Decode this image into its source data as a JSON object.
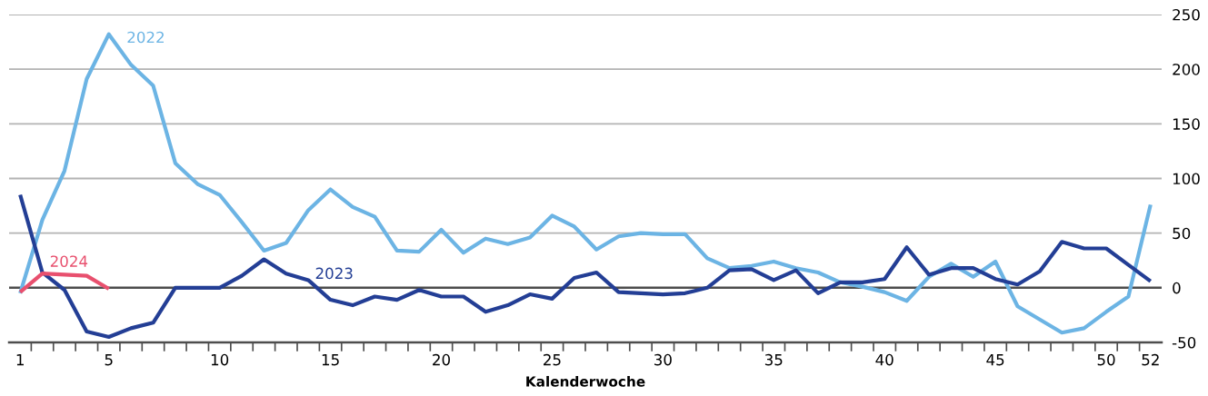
{
  "chart_data": {
    "type": "line",
    "xlabel": "Kalenderwoche",
    "x": [
      1,
      2,
      3,
      4,
      5,
      6,
      7,
      8,
      9,
      10,
      11,
      12,
      13,
      14,
      15,
      16,
      17,
      18,
      19,
      20,
      21,
      22,
      23,
      24,
      25,
      26,
      27,
      28,
      29,
      30,
      31,
      32,
      33,
      34,
      35,
      36,
      37,
      38,
      39,
      40,
      41,
      42,
      43,
      44,
      45,
      46,
      47,
      48,
      49,
      50,
      51,
      52
    ],
    "series": [
      {
        "name": "2022",
        "color": "#6cb4e4",
        "values": [
          -5,
          62,
          107,
          191,
          232,
          204,
          185,
          114,
          95,
          85,
          60,
          34,
          41,
          71,
          90,
          74,
          65,
          34,
          33,
          53,
          32,
          45,
          40,
          46,
          66,
          56,
          35,
          47,
          50,
          49,
          49,
          27,
          18,
          20,
          24,
          18,
          14,
          5,
          1,
          -4,
          -12,
          10,
          22,
          10,
          24,
          -17,
          -29,
          -41,
          -37,
          -22,
          -8,
          76
        ]
      },
      {
        "name": "2023",
        "color": "#233e95",
        "values": [
          85,
          14,
          -2,
          -40,
          -45,
          -37,
          -32,
          0,
          0,
          0,
          11,
          26,
          13,
          7,
          -11,
          -16,
          -8,
          -11,
          -2,
          -8,
          -8,
          -22,
          -16,
          -6,
          -10,
          9,
          14,
          -4,
          -5,
          -6,
          -5,
          0,
          16,
          17,
          7,
          16,
          -5,
          5,
          5,
          8,
          37,
          12,
          18,
          18,
          8,
          3,
          15,
          42,
          36,
          36,
          21,
          6
        ]
      },
      {
        "name": "2024",
        "color": "#e8506e",
        "x": [
          1,
          2,
          3,
          4,
          5
        ],
        "values": [
          -4,
          13,
          12,
          11,
          -1
        ]
      }
    ],
    "xlim": [
      0.5,
      52.5
    ],
    "xticks": [
      1,
      {
        "value": 1.5,
        "label": null
      },
      {
        "value": 2.5,
        "label": null
      },
      {
        "value": 3.5,
        "label": null
      },
      {
        "value": 4.5,
        "label": null
      },
      5,
      {
        "value": 5.5,
        "label": null
      },
      {
        "value": 6.5,
        "label": null
      },
      {
        "value": 7.5,
        "label": null
      },
      {
        "value": 8.5,
        "label": null
      },
      {
        "value": 9.5,
        "label": null
      },
      10,
      {
        "value": 10.5,
        "label": null
      },
      {
        "value": 11.5,
        "label": null
      },
      {
        "value": 12.5,
        "label": null
      },
      {
        "value": 13.5,
        "label": null
      },
      {
        "value": 14.5,
        "label": null
      },
      15,
      {
        "value": 15.5,
        "label": null
      },
      {
        "value": 16.5,
        "label": null
      },
      {
        "value": 17.5,
        "label": null
      },
      {
        "value": 18.5,
        "label": null
      },
      {
        "value": 19.5,
        "label": null
      },
      20,
      {
        "value": 20.5,
        "label": null
      },
      {
        "value": 21.5,
        "label": null
      },
      {
        "value": 22.5,
        "label": null
      },
      {
        "value": 23.5,
        "label": null
      },
      {
        "value": 24.5,
        "label": null
      },
      25,
      {
        "value": 25.5,
        "label": null
      },
      {
        "value": 26.5,
        "label": null
      },
      {
        "value": 27.5,
        "label": null
      },
      {
        "value": 28.5,
        "label": null
      },
      {
        "value": 29.5,
        "label": null
      },
      30,
      {
        "value": 30.5,
        "label": null
      },
      {
        "value": 31.5,
        "label": null
      },
      {
        "value": 32.5,
        "label": null
      },
      {
        "value": 33.5,
        "label": null
      },
      {
        "value": 34.5,
        "label": null
      },
      35,
      {
        "value": 35.5,
        "label": null
      },
      {
        "value": 36.5,
        "label": null
      },
      {
        "value": 37.5,
        "label": null
      },
      {
        "value": 38.5,
        "label": null
      },
      {
        "value": 39.5,
        "label": null
      },
      40,
      {
        "value": 40.5,
        "label": null
      },
      {
        "value": 41.5,
        "label": null
      },
      {
        "value": 42.5,
        "label": null
      },
      {
        "value": 43.5,
        "label": null
      },
      {
        "value": 44.5,
        "label": null
      },
      45,
      {
        "value": 45.5,
        "label": null
      },
      {
        "value": 46.5,
        "label": null
      },
      {
        "value": 47.5,
        "label": null
      },
      {
        "value": 48.5,
        "label": null
      },
      {
        "value": 49.5,
        "label": null
      },
      50,
      {
        "value": 50.5,
        "label": null
      },
      {
        "value": 51.5,
        "label": null
      },
      52
    ],
    "ylim": [
      -50,
      250
    ],
    "yticks": [
      {
        "value": -50,
        "label": "-50"
      },
      0,
      50,
      100,
      150,
      200,
      250
    ],
    "grid": "y",
    "ref_lines": [
      {
        "axis": "y",
        "value": 0,
        "color": "#4d4d4d"
      }
    ],
    "legend": false,
    "marker": "none",
    "line_style": "solid"
  }
}
